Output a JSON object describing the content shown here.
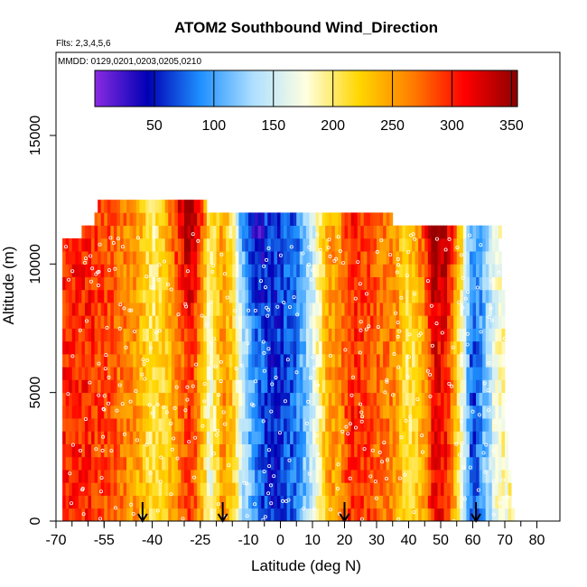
{
  "chart_data": {
    "type": "heatmap",
    "title": "ATOM2 Southbound Wind_Direction",
    "subtitle_flights": "Flts: 2,3,4,5,6",
    "subtitle_dates": "MMDD: 0129,0201,0203,0205,0210",
    "xlabel": "Latitude (deg N)",
    "ylabel": "Altitude (m)",
    "xlim": [
      -70,
      80
    ],
    "ylim": [
      0,
      17500
    ],
    "x_ticks": [
      -70,
      -55,
      -40,
      -25,
      -10,
      0,
      10,
      20,
      30,
      40,
      50,
      60,
      70,
      80
    ],
    "y_ticks": [
      0,
      5000,
      10000,
      15000
    ],
    "x_tick_labels": [
      "-70",
      "-55",
      "-40",
      "-25",
      "-10",
      "0",
      "10",
      "20",
      "30",
      "40",
      "50",
      "60",
      "70",
      "80"
    ],
    "y_tick_labels": [
      "0",
      "5000",
      "10000",
      "15000"
    ],
    "colorbar": {
      "range": [
        0,
        355
      ],
      "ticks": [
        50,
        100,
        150,
        200,
        250,
        300,
        350
      ],
      "tick_labels": [
        "50",
        "100",
        "150",
        "200",
        "250",
        "300",
        "350"
      ],
      "colors": [
        "#8a2be2",
        "#0000b4",
        "#1e90ff",
        "#aee0ff",
        "#ffffe0",
        "#ffd700",
        "#ff7f00",
        "#ff0000",
        "#8b0000"
      ]
    },
    "altitude_bins": [
      0,
      500,
      1000,
      1500,
      2000,
      2500,
      3000,
      3500,
      4000,
      4500,
      5000,
      5500,
      6000,
      6500,
      7000,
      7500,
      8000,
      8500,
      9000,
      9500,
      10000,
      10500,
      11000,
      11500,
      12000
    ],
    "latitude_ranges_by_level": [
      [
        -68,
        73
      ],
      [
        -68,
        72
      ],
      [
        -68,
        72
      ],
      [
        -68,
        72
      ],
      [
        -68,
        71
      ],
      [
        -68,
        71
      ],
      [
        -68,
        71
      ],
      [
        -68,
        70
      ],
      [
        -68,
        70
      ],
      [
        -68,
        70
      ],
      [
        -68,
        70
      ],
      [
        -68,
        70
      ],
      [
        -68,
        70
      ],
      [
        -68,
        70
      ],
      [
        -68,
        70
      ],
      [
        -68,
        70
      ],
      [
        -68,
        70
      ],
      [
        -68,
        70
      ],
      [
        -68,
        69
      ],
      [
        -68,
        69
      ],
      [
        -68,
        69
      ],
      [
        -68,
        68
      ],
      [
        -62,
        69
      ],
      [
        -58,
        35
      ],
      [
        -57,
        -23
      ]
    ],
    "wind_direction_profile": {
      "latitudes": [
        -68,
        -60,
        -52,
        -45,
        -40,
        -35,
        -31,
        -28,
        -25,
        -22,
        -18,
        -15,
        -12,
        -8,
        -4,
        0,
        5,
        10,
        15,
        18,
        22,
        27,
        31,
        36,
        40,
        45,
        48,
        52,
        56,
        60,
        64,
        68,
        73
      ],
      "directions": [
        300,
        300,
        280,
        250,
        205,
        230,
        270,
        300,
        250,
        170,
        260,
        230,
        150,
        90,
        60,
        60,
        80,
        150,
        250,
        250,
        300,
        290,
        270,
        260,
        200,
        250,
        320,
        300,
        200,
        60,
        120,
        180,
        190
      ]
    },
    "flight_track_markers_deg_lat": [
      -43,
      -18,
      20,
      61
    ]
  }
}
